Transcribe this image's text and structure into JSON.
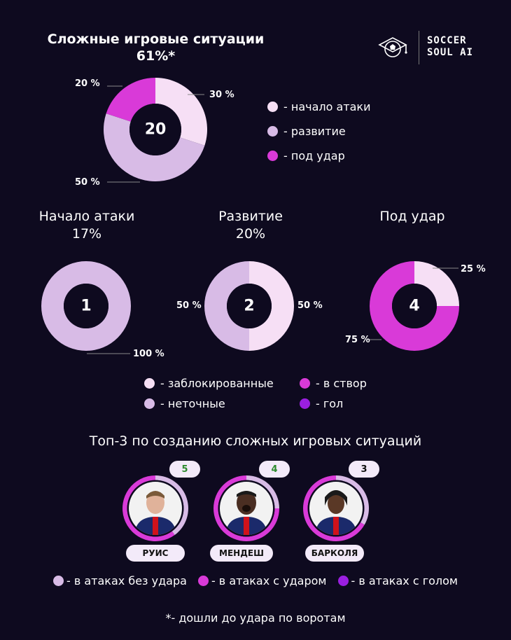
{
  "header": {
    "title": "Сложные игровые ситуации",
    "subtitle": "61%*",
    "logo_line1": "SOCCER",
    "logo_line2": "SOUL AI"
  },
  "colors": {
    "background": "#0e0a1f",
    "light_pink": "#f6dff5",
    "lavender": "#d8bbe6",
    "magenta": "#d93ad8",
    "purple": "#9b1fe0"
  },
  "chart_data": [
    {
      "type": "pie",
      "title": "Сложные игровые ситуации",
      "subtitle": "61%*",
      "center_value": "20",
      "categories": [
        "начало атаки",
        "развитие",
        "под удар"
      ],
      "values": [
        30,
        50,
        20
      ],
      "value_labels": [
        "30 %",
        "50 %",
        "20 %"
      ],
      "colors": [
        "#f6dff5",
        "#d8bbe6",
        "#d93ad8"
      ]
    },
    {
      "type": "pie",
      "title": "Начало атаки",
      "subtitle": "17%",
      "center_value": "1",
      "categories": [
        "неточные"
      ],
      "values": [
        100
      ],
      "value_labels": [
        "100 %"
      ],
      "colors": [
        "#d8bbe6"
      ]
    },
    {
      "type": "pie",
      "title": "Развитие",
      "subtitle": "20%",
      "center_value": "2",
      "categories": [
        "заблокированные",
        "неточные"
      ],
      "values": [
        50,
        50
      ],
      "value_labels": [
        "50 %",
        "50 %"
      ],
      "colors": [
        "#f6dff5",
        "#d8bbe6"
      ]
    },
    {
      "type": "pie",
      "title": "Под удар",
      "subtitle": "",
      "center_value": "4",
      "categories": [
        "заблокированные",
        "в створ"
      ],
      "values": [
        25,
        75
      ],
      "value_labels": [
        "25 %",
        "75 %"
      ],
      "colors": [
        "#f6dff5",
        "#d93ad8"
      ]
    }
  ],
  "legend_main": [
    {
      "label": "- начало атаки",
      "color": "#f6dff5"
    },
    {
      "label": "- развитие",
      "color": "#d8bbe6"
    },
    {
      "label": "- под удар",
      "color": "#d93ad8"
    }
  ],
  "legend_outcome": [
    {
      "label": "- заблокированные",
      "color": "#f6dff5"
    },
    {
      "label": "- неточные",
      "color": "#d8bbe6"
    },
    {
      "label": "- в створ",
      "color": "#d93ad8"
    },
    {
      "label": "- гол",
      "color": "#9b1fe0"
    }
  ],
  "top3": {
    "title": "Топ-3 по созданию сложных игровых ситуаций",
    "players": [
      {
        "name": "РУИС",
        "count": "5",
        "ring": [
          {
            "value": 40,
            "color": "#d8bbe6"
          },
          {
            "value": 60,
            "color": "#d93ad8"
          }
        ]
      },
      {
        "name": "МЕНДЕШ",
        "count": "4",
        "ring": [
          {
            "value": 25,
            "color": "#d8bbe6"
          },
          {
            "value": 75,
            "color": "#d93ad8"
          }
        ]
      },
      {
        "name": "БАРКОЛЯ",
        "count": "3",
        "ring": [
          {
            "value": 33.3,
            "color": "#d8bbe6"
          },
          {
            "value": 66.7,
            "color": "#d93ad8"
          }
        ]
      }
    ],
    "legend": [
      {
        "label": "- в атаках без удара",
        "color": "#d8bbe6"
      },
      {
        "label": "- в атаках с ударом",
        "color": "#d93ad8"
      },
      {
        "label": "- в атаках с голом",
        "color": "#9b1fe0"
      }
    ]
  },
  "footnote": "*- дошли до удара по воротам"
}
